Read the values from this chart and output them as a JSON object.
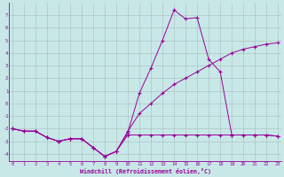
{
  "xlabel": "Windchill (Refroidissement éolien,°C)",
  "bg_color": "#c8e8e8",
  "line_color": "#990099",
  "grid_color": "#aabbbb",
  "x_values": [
    0,
    1,
    2,
    3,
    4,
    5,
    6,
    7,
    8,
    9,
    10,
    11,
    12,
    13,
    14,
    15,
    16,
    17,
    18,
    19,
    20,
    21,
    22,
    23
  ],
  "curve1": [
    -2.0,
    -2.2,
    -2.2,
    -2.7,
    -3.0,
    -2.8,
    -2.8,
    -3.5,
    -4.2,
    -3.8,
    -2.3,
    0.8,
    2.8,
    5.0,
    7.4,
    6.7,
    6.8,
    3.5,
    2.5,
    -2.5,
    -2.5,
    -2.5,
    -2.5,
    -2.6
  ],
  "curve2": [
    -2.0,
    -2.2,
    -2.2,
    -2.7,
    -3.0,
    -2.8,
    -2.8,
    -3.5,
    -4.2,
    -3.8,
    -2.2,
    -0.8,
    0.0,
    0.8,
    1.5,
    2.0,
    2.5,
    3.0,
    3.5,
    4.0,
    4.3,
    4.5,
    4.7,
    4.8
  ],
  "curve3": [
    -2.0,
    -2.2,
    -2.2,
    -2.7,
    -3.0,
    -2.8,
    -2.8,
    -3.5,
    -4.2,
    -3.8,
    -2.5,
    -2.5,
    -2.5,
    -2.5,
    -2.5,
    -2.5,
    -2.5,
    -2.5,
    -2.5,
    -2.5,
    -2.5,
    -2.5,
    -2.5,
    -2.6
  ],
  "ylim": [
    -4.6,
    8.0
  ],
  "xlim": [
    -0.3,
    23.3
  ],
  "yticks": [
    7,
    6,
    5,
    4,
    3,
    2,
    1,
    0,
    -1,
    -2,
    -3,
    -4
  ],
  "xticks": [
    0,
    1,
    2,
    3,
    4,
    5,
    6,
    7,
    8,
    9,
    10,
    11,
    12,
    13,
    14,
    15,
    16,
    17,
    18,
    19,
    20,
    21,
    22,
    23
  ]
}
